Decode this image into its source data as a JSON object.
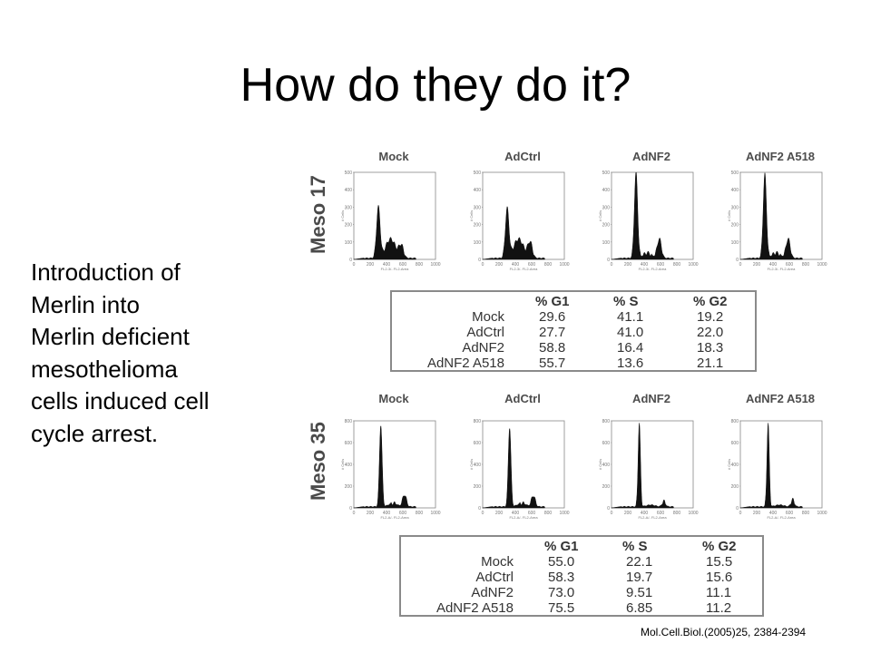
{
  "title": "How do they do it?",
  "intro_lines": [
    "Introduction of",
    "Merlin into",
    "Merlin deficient",
    "mesothelioma",
    "cells induced cell",
    "cycle arrest."
  ],
  "citation": "Mol.Cell.Biol.(2005)25, 2384-2394",
  "figure": {
    "sections": [
      {
        "label": "Meso 17",
        "panel_titles": [
          "Mock",
          "AdCtrl",
          "AdNF2",
          "AdNF2 A518"
        ],
        "y_ticks": [
          "500",
          "400",
          "300",
          "200",
          "100",
          "0"
        ],
        "x_ticks": [
          "0",
          "200",
          "400",
          "600",
          "800",
          "1000"
        ],
        "x_label": "FL2-3/- FL2-Area",
        "y_label": "# Cells",
        "table": {
          "headers": [
            "% G1",
            "% S",
            "% G2"
          ],
          "rows": [
            {
              "label": "Mock",
              "g1": "29.6",
              "s": "41.1",
              "g2": "19.2"
            },
            {
              "label": "AdCtrl",
              "g1": "27.7",
              "s": "41.0",
              "g2": "22.0"
            },
            {
              "label": "AdNF2",
              "g1": "58.8",
              "s": "16.4",
              "g2": "18.3"
            },
            {
              "label": "AdNF2 A518",
              "g1": "55.7",
              "s": "13.6",
              "g2": "21.1"
            }
          ]
        }
      },
      {
        "label": "Meso 35",
        "panel_titles": [
          "Mock",
          "AdCtrl",
          "AdNF2",
          "AdNF2 A518"
        ],
        "y_ticks": [
          "800",
          "600",
          "400",
          "200",
          "0"
        ],
        "x_ticks": [
          "0",
          "200",
          "400",
          "600",
          "800",
          "1000"
        ],
        "x_label": "FL2-A/- FL2-Area",
        "y_label": "# Cells",
        "table": {
          "headers": [
            "% G1",
            "% S",
            "% G2"
          ],
          "rows": [
            {
              "label": "Mock",
              "g1": "55.0",
              "s": "22.1",
              "g2": "15.5"
            },
            {
              "label": "AdCtrl",
              "g1": "58.3",
              "s": "19.7",
              "g2": "15.6"
            },
            {
              "label": "AdNF2",
              "g1": "73.0",
              "s": "9.51",
              "g2": "11.1"
            },
            {
              "label": "AdNF2 A518",
              "g1": "75.5",
              "s": "6.85",
              "g2": "11.2"
            }
          ]
        }
      }
    ]
  }
}
